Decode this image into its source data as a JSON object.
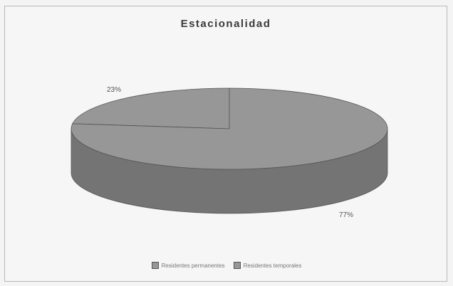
{
  "chart_data": {
    "type": "pie",
    "title": "Estacionalidad",
    "categories": [
      "Residentes permanentes",
      "Residentes temporales"
    ],
    "values": [
      23,
      77
    ],
    "labels": [
      "23%",
      "77%"
    ],
    "three_d": true,
    "legend_position": "bottom",
    "colors": {
      "slice_top": "#979797",
      "slice_side": "#747474",
      "outline": "#555555"
    }
  }
}
